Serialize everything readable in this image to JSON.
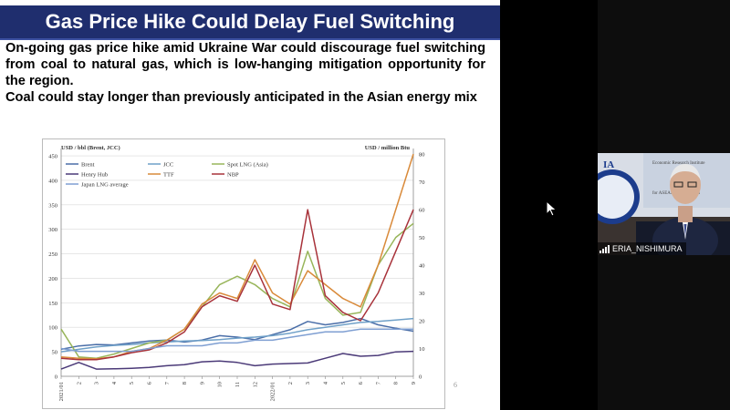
{
  "slide": {
    "title": "Gas Price Hike Could Delay Fuel Switching",
    "paragraph1": "On-going gas price hike amid Ukraine War could discourage fuel switching from coal to natural gas, which is low-hanging mitigation opportunity for the region.",
    "paragraph2": "Coal could stay longer than previously anticipated in the Asian energy mix",
    "page_number": "6"
  },
  "chart_data": {
    "type": "line",
    "left_axis_label": "USD  / bbl (Brent, JCC)",
    "right_axis_label": "USD / million Btu",
    "left_ticks": [
      "0",
      "50",
      "100",
      "150",
      "200",
      "250",
      "300",
      "350",
      "400",
      "450"
    ],
    "right_ticks": [
      "0",
      "10",
      "20",
      "30",
      "40",
      "50",
      "60",
      "70",
      "80"
    ],
    "ylim_left": [
      0,
      465
    ],
    "ylim_right": [
      0,
      82
    ],
    "x_ticks": [
      "2021/01",
      "2",
      "3",
      "4",
      "5",
      "6",
      "7",
      "8",
      "9",
      "10",
      "11",
      "12",
      "2022/01",
      "2",
      "3",
      "4",
      "5",
      "6",
      "7",
      "8",
      "9"
    ],
    "legend": [
      "Brent",
      "JCC",
      "Spot LNG (Asia)",
      "Henry Hub",
      "TTF",
      "NBP",
      "Japan LNG average"
    ],
    "series": [
      {
        "name": "Brent",
        "axis": "left",
        "color": "#4a6ea8",
        "values": [
          55,
          62,
          65,
          64,
          68,
          72,
          74,
          70,
          74,
          83,
          80,
          75,
          85,
          95,
          112,
          105,
          110,
          118,
          105,
          98,
          92
        ]
      },
      {
        "name": "JCC",
        "axis": "left",
        "color": "#6fa0c8",
        "values": [
          50,
          55,
          60,
          63,
          65,
          68,
          70,
          72,
          73,
          75,
          78,
          80,
          83,
          88,
          95,
          100,
          105,
          110,
          112,
          115,
          118
        ]
      },
      {
        "name": "Spot LNG (Asia)",
        "axis": "right",
        "color": "#98b55a",
        "values": [
          17,
          7,
          6.5,
          8,
          10,
          12,
          13,
          17,
          25,
          33,
          36,
          33,
          28,
          25,
          45,
          28,
          22,
          23,
          40,
          50,
          55
        ]
      },
      {
        "name": "Henry Hub",
        "axis": "right",
        "color": "#4b3a78",
        "values": [
          2.6,
          5,
          2.6,
          2.7,
          2.9,
          3.2,
          3.8,
          4.2,
          5.2,
          5.5,
          5,
          3.8,
          4.4,
          4.6,
          4.8,
          6.5,
          8.2,
          7.2,
          7.5,
          8.8,
          9
        ]
      },
      {
        "name": "TTF",
        "axis": "right",
        "color": "#d98a3a",
        "values": [
          7,
          6.5,
          6.3,
          7,
          9,
          10,
          13,
          17,
          26,
          30,
          28,
          42,
          30,
          26,
          38,
          33,
          28,
          25,
          40,
          60,
          80
        ]
      },
      {
        "name": "NBP",
        "axis": "right",
        "color": "#a8323a",
        "values": [
          6.5,
          6,
          6,
          7,
          8.5,
          9.5,
          12,
          16,
          25,
          29,
          27,
          40,
          26,
          24,
          60,
          29,
          23,
          20,
          30,
          45,
          60
        ]
      },
      {
        "name": "Japan LNG average",
        "axis": "right",
        "color": "#7f9fd2",
        "values": [
          10,
          9,
          9,
          9,
          9,
          10,
          11,
          11,
          11,
          12,
          12,
          13,
          13,
          14,
          15,
          16,
          16,
          17,
          17,
          17,
          17
        ]
      }
    ]
  },
  "participant": {
    "name": "ERIA_NISHIMURA",
    "background_text": [
      "Economic Research Institute",
      "for ASEAN and East Asia"
    ]
  }
}
